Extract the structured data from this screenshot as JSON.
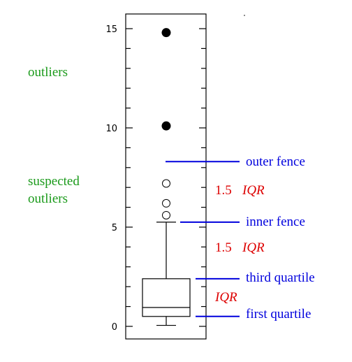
{
  "chart_data": {
    "type": "boxplot",
    "title": "",
    "xlabel": "",
    "ylabel": "",
    "ylim": [
      -0.6,
      15.8
    ],
    "yticks": [
      "0",
      "5",
      "10",
      "15"
    ],
    "minor_tick_step": 1,
    "box": {
      "whisker_low": 0.05,
      "q1": 0.5,
      "median": 0.95,
      "q3": 2.4,
      "whisker_high": 5.25
    },
    "inner_fence": 5.25,
    "outer fence_note": "",
    "outer_fence": 8.3,
    "suspected_outliers": [
      5.6,
      6.2,
      7.2
    ],
    "outliers": [
      10.1,
      14.8
    ]
  },
  "labels": {
    "outliers": "outliers",
    "suspected_line1": "suspected",
    "suspected_line2": "outliers",
    "outer_fence": "outer fence",
    "inner_fence": "inner fence",
    "third_quartile": "third quartile",
    "first_quartile": "first quartile",
    "iqr_multiplier": "1.5",
    "iqr": "IQR"
  },
  "colors": {
    "green": "#1a9a1a",
    "blue": "#0000dd",
    "red": "#dd0000",
    "black": "#000000"
  }
}
